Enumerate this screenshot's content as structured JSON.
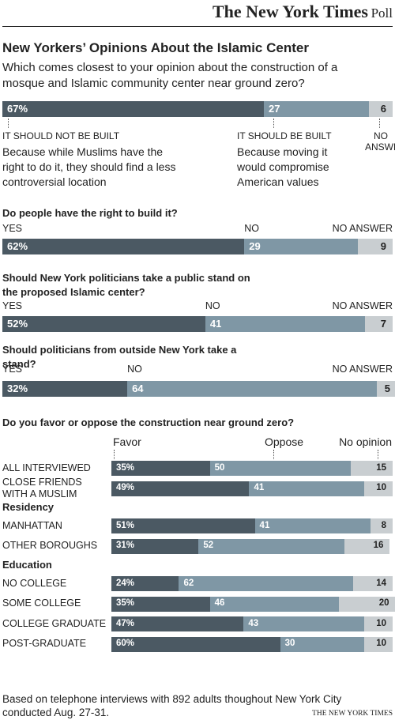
{
  "header": {
    "brand": "The New York Times",
    "section": "Poll",
    "title": "New Yorkers’ Opinions About the Islamic Center"
  },
  "chart_data": [
    {
      "type": "stacked-bar",
      "question": "Which comes closest to your opinion about the construction of a mosque and Islamic community center near ground zero?",
      "series": [
        {
          "name": "IT SHOULD NOT BE BUILT",
          "description": "Because while Muslims have the right to do it, they should find a less controversial location",
          "color": "#4b5963",
          "values": [
            67
          ],
          "value_labels": [
            "67%"
          ]
        },
        {
          "name": "IT SHOULD BE BUILT",
          "description": "Because moving it would compromise American values",
          "color": "#7f97a5",
          "values": [
            27
          ]
        },
        {
          "name": "NO ANSWER",
          "color": "#c9ced1",
          "values": [
            6
          ]
        }
      ]
    },
    {
      "type": "stacked-bar",
      "question": "Do people have the right to build it?",
      "series": [
        {
          "name": "YES",
          "color": "#4b5963",
          "values": [
            62
          ],
          "value_labels": [
            "62%"
          ]
        },
        {
          "name": "NO",
          "color": "#7f97a5",
          "values": [
            29
          ]
        },
        {
          "name": "NO ANSWER",
          "color": "#c9ced1",
          "values": [
            9
          ]
        }
      ]
    },
    {
      "type": "stacked-bar",
      "question": "Should New York politicians take a public stand on the proposed Islamic center?",
      "series": [
        {
          "name": "YES",
          "color": "#4b5963",
          "values": [
            52
          ],
          "value_labels": [
            "52%"
          ]
        },
        {
          "name": "NO",
          "color": "#7f97a5",
          "values": [
            41
          ]
        },
        {
          "name": "NO ANSWER",
          "color": "#c9ced1",
          "values": [
            7
          ]
        }
      ]
    },
    {
      "type": "stacked-bar",
      "question": "Should politicians from outside New York take a stand?",
      "series": [
        {
          "name": "YES",
          "color": "#4b5963",
          "values": [
            32
          ],
          "value_labels": [
            "32%"
          ]
        },
        {
          "name": "NO",
          "color": "#7f97a5",
          "values": [
            64
          ]
        },
        {
          "name": "NO ANSWER",
          "color": "#c9ced1",
          "values": [
            5
          ]
        }
      ]
    },
    {
      "type": "grouped-stacked-bar",
      "question": "Do you favor or oppose the construction near ground zero?",
      "groups": [
        {
          "categories": [
            "ALL INTERVIEWED",
            "CLOSE FRIENDS WITH A MUSLIM"
          ]
        },
        {
          "name": "Residency",
          "categories": [
            "MANHATTAN",
            "OTHER BOROUGHS"
          ]
        },
        {
          "name": "Education",
          "categories": [
            "NO COLLEGE",
            "SOME COLLEGE",
            "COLLEGE GRADUATE",
            "POST-GRADUATE"
          ]
        }
      ],
      "series": [
        {
          "name": "Favor",
          "color": "#4b5963",
          "values": [
            35,
            49,
            51,
            31,
            24,
            35,
            47,
            60
          ],
          "value_labels": [
            "35%",
            "49%",
            "51%",
            "31%",
            "24%",
            "35%",
            "47%",
            "60%"
          ]
        },
        {
          "name": "Oppose",
          "color": "#7f97a5",
          "values": [
            50,
            41,
            41,
            52,
            62,
            46,
            43,
            30
          ]
        },
        {
          "name": "No opinion",
          "color": "#c9ced1",
          "values": [
            15,
            10,
            8,
            16,
            14,
            20,
            10,
            10
          ]
        }
      ]
    }
  ],
  "footer": {
    "note": "Based on telephone interviews with 892 adults thoughout New York City conducted Aug. 27-31.",
    "credit": "THE NEW YORK TIMES"
  }
}
